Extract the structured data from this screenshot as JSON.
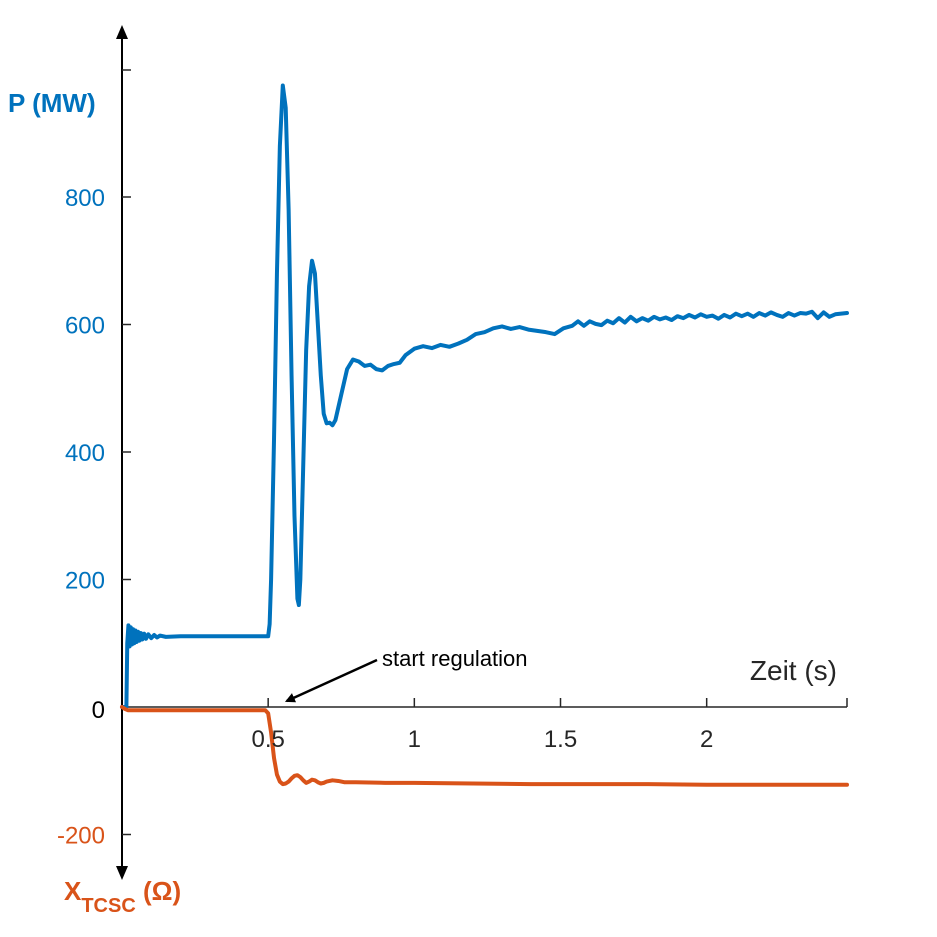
{
  "chart_data": {
    "type": "line",
    "colors": {
      "p": "#0072BD",
      "x": "#D95319",
      "axis": "#000000",
      "text": "#262626"
    },
    "xlabel": "Zeit (s)",
    "xlim": [
      0,
      2.48
    ],
    "ylim": [
      -250,
      1000
    ],
    "x_ticks": [
      {
        "value": 0.5,
        "label": "0.5"
      },
      {
        "value": 1,
        "label": "1"
      },
      {
        "value": 1.5,
        "label": "1.5"
      },
      {
        "value": 2,
        "label": "2"
      }
    ],
    "y_ticks_p": [
      {
        "value": 200,
        "label": "200"
      },
      {
        "value": 400,
        "label": "400"
      },
      {
        "value": 600,
        "label": "600"
      },
      {
        "value": 800,
        "label": "800"
      }
    ],
    "y_ticks_x": [
      {
        "value": -200,
        "label": "-200"
      }
    ],
    "y_zero_label": "0",
    "ylabel_p": "P (MW)",
    "ylabel_x": {
      "main": "X",
      "sub": "TCSC",
      "unit": " (Ω)"
    },
    "annotation": {
      "text": "start regulation",
      "x": 0.55,
      "y": 0
    },
    "series": [
      {
        "name": "P (MW)",
        "color": "#0072BD",
        "points": [
          [
            0.0,
            0
          ],
          [
            0.015,
            0
          ],
          [
            0.018,
            100
          ],
          [
            0.022,
            128
          ],
          [
            0.026,
            95
          ],
          [
            0.03,
            125
          ],
          [
            0.034,
            98
          ],
          [
            0.038,
            122
          ],
          [
            0.042,
            100
          ],
          [
            0.046,
            120
          ],
          [
            0.05,
            102
          ],
          [
            0.055,
            118
          ],
          [
            0.06,
            104
          ],
          [
            0.065,
            116
          ],
          [
            0.07,
            106
          ],
          [
            0.076,
            115
          ],
          [
            0.082,
            107
          ],
          [
            0.09,
            114
          ],
          [
            0.1,
            108
          ],
          [
            0.11,
            113
          ],
          [
            0.12,
            109
          ],
          [
            0.13,
            112
          ],
          [
            0.15,
            110
          ],
          [
            0.2,
            111
          ],
          [
            0.3,
            111
          ],
          [
            0.4,
            111
          ],
          [
            0.5,
            111
          ],
          [
            0.505,
            130
          ],
          [
            0.51,
            200
          ],
          [
            0.52,
            420
          ],
          [
            0.53,
            680
          ],
          [
            0.54,
            880
          ],
          [
            0.55,
            975
          ],
          [
            0.56,
            940
          ],
          [
            0.57,
            780
          ],
          [
            0.58,
            520
          ],
          [
            0.59,
            300
          ],
          [
            0.6,
            170
          ],
          [
            0.605,
            160
          ],
          [
            0.61,
            200
          ],
          [
            0.62,
            380
          ],
          [
            0.63,
            560
          ],
          [
            0.64,
            660
          ],
          [
            0.65,
            700
          ],
          [
            0.66,
            680
          ],
          [
            0.67,
            600
          ],
          [
            0.68,
            520
          ],
          [
            0.69,
            460
          ],
          [
            0.7,
            445
          ],
          [
            0.71,
            446
          ],
          [
            0.72,
            442
          ],
          [
            0.73,
            450
          ],
          [
            0.75,
            490
          ],
          [
            0.77,
            530
          ],
          [
            0.79,
            545
          ],
          [
            0.81,
            542
          ],
          [
            0.83,
            535
          ],
          [
            0.85,
            537
          ],
          [
            0.87,
            530
          ],
          [
            0.89,
            528
          ],
          [
            0.91,
            535
          ],
          [
            0.93,
            538
          ],
          [
            0.95,
            540
          ],
          [
            0.97,
            552
          ],
          [
            1.0,
            562
          ],
          [
            1.03,
            566
          ],
          [
            1.06,
            563
          ],
          [
            1.09,
            568
          ],
          [
            1.12,
            565
          ],
          [
            1.15,
            570
          ],
          [
            1.18,
            576
          ],
          [
            1.21,
            585
          ],
          [
            1.24,
            588
          ],
          [
            1.27,
            594
          ],
          [
            1.3,
            597
          ],
          [
            1.33,
            593
          ],
          [
            1.36,
            596
          ],
          [
            1.39,
            592
          ],
          [
            1.42,
            590
          ],
          [
            1.45,
            588
          ],
          [
            1.48,
            585
          ],
          [
            1.51,
            594
          ],
          [
            1.54,
            598
          ],
          [
            1.56,
            605
          ],
          [
            1.58,
            598
          ],
          [
            1.6,
            605
          ],
          [
            1.62,
            601
          ],
          [
            1.64,
            599
          ],
          [
            1.66,
            606
          ],
          [
            1.68,
            602
          ],
          [
            1.7,
            610
          ],
          [
            1.72,
            603
          ],
          [
            1.74,
            612
          ],
          [
            1.76,
            605
          ],
          [
            1.78,
            610
          ],
          [
            1.8,
            606
          ],
          [
            1.82,
            612
          ],
          [
            1.84,
            608
          ],
          [
            1.86,
            611
          ],
          [
            1.88,
            607
          ],
          [
            1.9,
            613
          ],
          [
            1.92,
            610
          ],
          [
            1.94,
            615
          ],
          [
            1.96,
            611
          ],
          [
            1.98,
            616
          ],
          [
            2.0,
            612
          ],
          [
            2.02,
            614
          ],
          [
            2.04,
            609
          ],
          [
            2.06,
            615
          ],
          [
            2.08,
            611
          ],
          [
            2.1,
            617
          ],
          [
            2.12,
            613
          ],
          [
            2.14,
            617
          ],
          [
            2.16,
            612
          ],
          [
            2.18,
            618
          ],
          [
            2.2,
            614
          ],
          [
            2.22,
            619
          ],
          [
            2.24,
            615
          ],
          [
            2.26,
            612
          ],
          [
            2.28,
            618
          ],
          [
            2.3,
            614
          ],
          [
            2.32,
            618
          ],
          [
            2.34,
            617
          ],
          [
            2.36,
            620
          ],
          [
            2.38,
            610
          ],
          [
            2.4,
            619
          ],
          [
            2.42,
            612
          ],
          [
            2.44,
            616
          ],
          [
            2.46,
            617
          ],
          [
            2.48,
            618
          ]
        ]
      },
      {
        "name": "X_TCSC (Ω)",
        "color": "#D95319",
        "points": [
          [
            0.0,
            0
          ],
          [
            0.01,
            -3
          ],
          [
            0.02,
            -5
          ],
          [
            0.05,
            -5
          ],
          [
            0.1,
            -5
          ],
          [
            0.2,
            -5
          ],
          [
            0.3,
            -5
          ],
          [
            0.4,
            -5
          ],
          [
            0.49,
            -5
          ],
          [
            0.5,
            -10
          ],
          [
            0.51,
            -40
          ],
          [
            0.52,
            -80
          ],
          [
            0.53,
            -106
          ],
          [
            0.54,
            -117
          ],
          [
            0.55,
            -121
          ],
          [
            0.56,
            -120
          ],
          [
            0.57,
            -117
          ],
          [
            0.58,
            -112
          ],
          [
            0.59,
            -108
          ],
          [
            0.6,
            -107
          ],
          [
            0.61,
            -110
          ],
          [
            0.62,
            -115
          ],
          [
            0.63,
            -119
          ],
          [
            0.64,
            -117
          ],
          [
            0.65,
            -114
          ],
          [
            0.66,
            -115
          ],
          [
            0.67,
            -118
          ],
          [
            0.68,
            -120
          ],
          [
            0.69,
            -119
          ],
          [
            0.7,
            -117
          ],
          [
            0.72,
            -115
          ],
          [
            0.74,
            -116
          ],
          [
            0.76,
            -118
          ],
          [
            0.8,
            -118
          ],
          [
            0.9,
            -119
          ],
          [
            1.0,
            -119
          ],
          [
            1.2,
            -120
          ],
          [
            1.4,
            -121
          ],
          [
            1.6,
            -121
          ],
          [
            1.8,
            -121
          ],
          [
            2.0,
            -122
          ],
          [
            2.2,
            -122
          ],
          [
            2.48,
            -122
          ]
        ]
      }
    ]
  }
}
